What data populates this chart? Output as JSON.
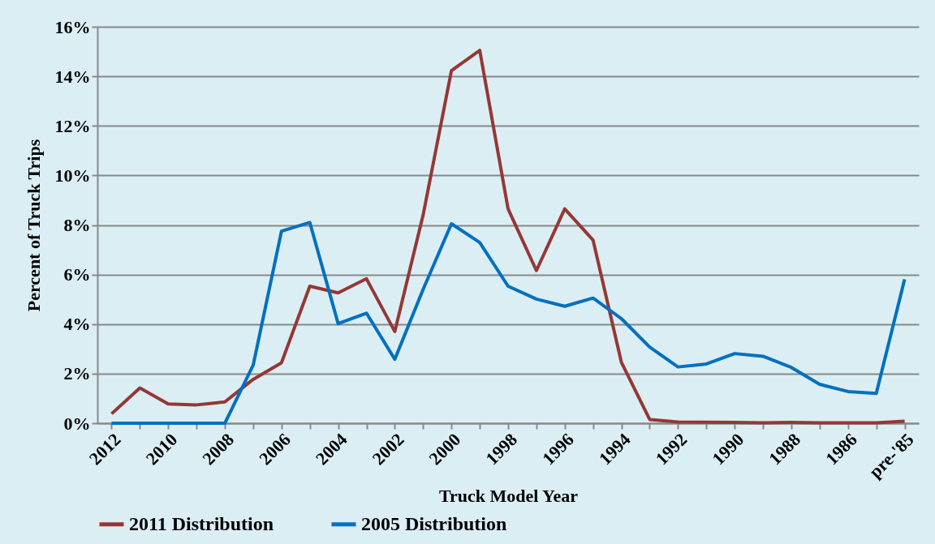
{
  "chart_data": {
    "type": "line",
    "xlabel": "Truck Model Year",
    "ylabel": "Percent of Truck Trips",
    "categories": [
      "2012",
      null,
      "2010",
      null,
      "2008",
      null,
      "2006",
      null,
      "2004",
      null,
      "2002",
      null,
      "2000",
      null,
      "1998",
      null,
      "1996",
      null,
      "1994",
      null,
      "1992",
      null,
      "1990",
      null,
      "1988",
      null,
      "1986",
      null,
      "pre-'85"
    ],
    "series": [
      {
        "name": "2011 Distribution",
        "color": "#953735",
        "values": [
          0.38,
          1.42,
          0.78,
          0.74,
          0.86,
          1.77,
          2.44,
          5.53,
          5.26,
          5.83,
          3.7,
          8.4,
          14.23,
          15.05,
          8.65,
          6.16,
          8.65,
          7.39,
          2.46,
          0.15,
          0.05,
          0.04,
          0.03,
          0.02,
          0.03,
          0.02,
          0.02,
          0.02,
          0.08
        ]
      },
      {
        "name": "2005 Distribution",
        "color": "#0070c0",
        "values": [
          0,
          0,
          0,
          0,
          0,
          2.34,
          7.75,
          8.1,
          4.02,
          4.44,
          2.58,
          5.4,
          8.05,
          7.29,
          5.53,
          5.01,
          4.72,
          5.05,
          4.22,
          3.07,
          2.27,
          2.39,
          2.81,
          2.7,
          2.25,
          1.57,
          1.28,
          1.2,
          5.81
        ]
      }
    ],
    "ylim": [
      0,
      16
    ],
    "yticks": [
      {
        "value": 0,
        "label": "0%"
      },
      {
        "value": 2,
        "label": "2%"
      },
      {
        "value": 4,
        "label": "4%"
      },
      {
        "value": 6,
        "label": "6%"
      },
      {
        "value": 8,
        "label": "8%"
      },
      {
        "value": 10,
        "label": "10%"
      },
      {
        "value": 12,
        "label": "12%"
      },
      {
        "value": 14,
        "label": "14%"
      },
      {
        "value": 16,
        "label": "16%"
      }
    ],
    "grid": "y",
    "legend": "bottom",
    "marker": "none",
    "line_style": "solid"
  }
}
